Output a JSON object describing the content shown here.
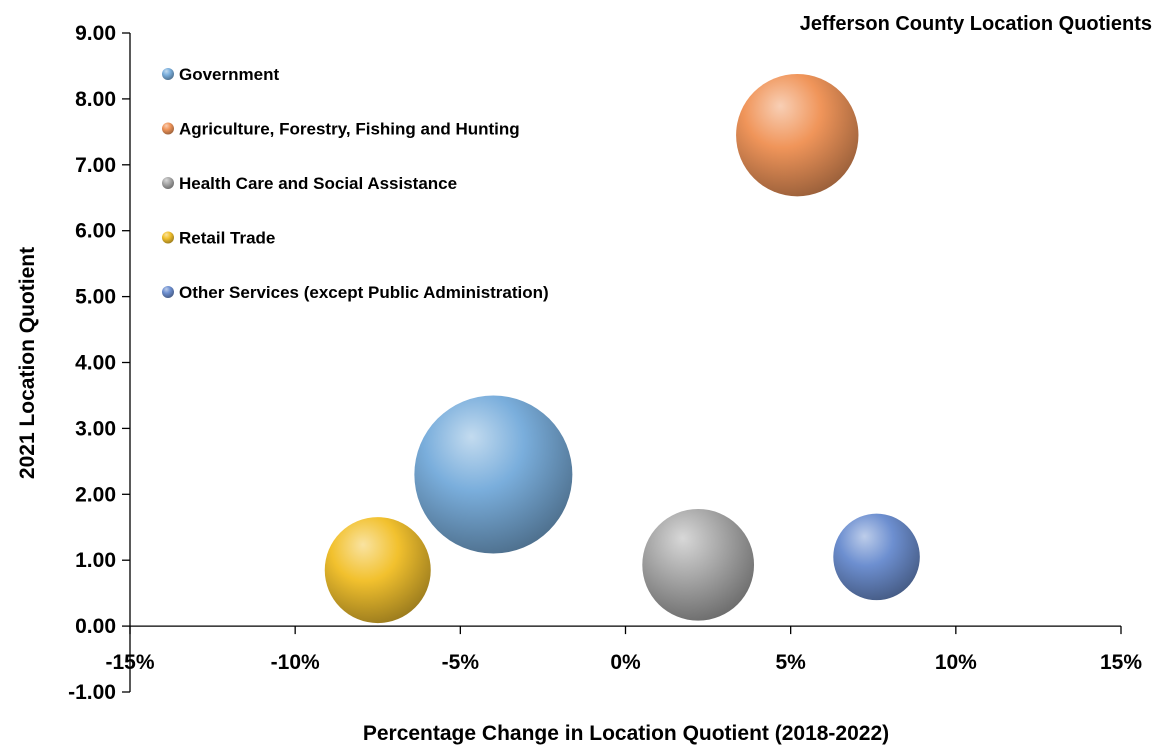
{
  "chart_data": {
    "type": "bubble",
    "title": "Jefferson County Location Quotients",
    "xlabel": "Percentage Change in Location Quotient (2018-2022)",
    "ylabel": "2021 Location Quotient",
    "xlim": [
      -0.15,
      0.15
    ],
    "ylim": [
      -1.0,
      9.0
    ],
    "x_ticks": [
      "-15%",
      "-10%",
      "-5%",
      "0%",
      "5%",
      "10%",
      "15%"
    ],
    "y_ticks": [
      "9.00",
      "8.00",
      "7.00",
      "6.00",
      "5.00",
      "4.00",
      "3.00",
      "2.00",
      "1.00",
      "0.00",
      "-1.00"
    ],
    "legend_position": "top-left",
    "series": [
      {
        "name": "Government",
        "x": -0.04,
        "y": 2.3,
        "size": 1.0,
        "color": "#7aaedc"
      },
      {
        "name": "Agriculture, Forestry, Fishing and Hunting",
        "x": 0.052,
        "y": 7.45,
        "size": 0.6,
        "color": "#f0955a"
      },
      {
        "name": "Health Care and Social Assistance",
        "x": 0.022,
        "y": 0.93,
        "size": 0.5,
        "color": "#a9a9a9"
      },
      {
        "name": "Retail Trade",
        "x": -0.075,
        "y": 0.85,
        "size": 0.45,
        "color": "#f2c12e"
      },
      {
        "name": "Other Services (except Public Administration)",
        "x": 0.076,
        "y": 1.05,
        "size": 0.3,
        "color": "#6d8fd0"
      }
    ]
  }
}
